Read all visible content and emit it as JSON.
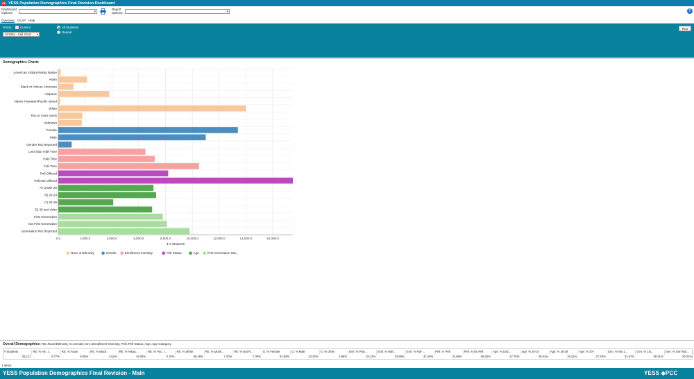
{
  "window": {
    "title": "YESS Population Demographics Final Revision.Dashboard"
  },
  "toolbar": {
    "dashboard_options_label": "Dashboard Options:",
    "report_options_label": "Report Options:",
    "dashboard_value": "",
    "report_value": ""
  },
  "menu": {
    "items": [
      "Overview",
      "OLAP",
      "Help"
    ]
  },
  "filters": {
    "terms_label": "Terms:",
    "current_label": "Current",
    "term_value": "201904 - Fall 2019",
    "radio_all": "All Students",
    "radio_repeat": "Repeat",
    "run_label": "Run"
  },
  "charts_title": "Demographics Charts",
  "chart_data": {
    "type": "bar",
    "orientation": "horizontal",
    "categories": [
      "American Indian/Alaska Native",
      "Asian",
      "Black or African American",
      "Hispanic",
      "Native Hawaiian/Pacific Island",
      "White",
      "Two or more races",
      "Unknown",
      "Female",
      "Male",
      "Gender Not Reported",
      "Less than Half-Time",
      "Half-Time",
      "Full-Time",
      "Pell Offered",
      "Pell Not Offered",
      "A) Under 20",
      "B) 20-24",
      "C) 25-29",
      "D) 30 and older",
      "First Generation",
      "Not First Generation",
      "Generation Not Reported"
    ],
    "values": [
      180,
      2150,
      1150,
      3800,
      150,
      14000,
      1800,
      1750,
      13400,
      11000,
      1000,
      6500,
      7200,
      10500,
      8200,
      17500,
      7100,
      7300,
      4100,
      7000,
      7800,
      8100,
      9800
    ],
    "groups": [
      "Race & Ethnicity",
      "Race & Ethnicity",
      "Race & Ethnicity",
      "Race & Ethnicity",
      "Race & Ethnicity",
      "Race & Ethnicity",
      "Race & Ethnicity",
      "Race & Ethnicity",
      "Gender",
      "Gender",
      "Gender",
      "Enrollment Intensity",
      "Enrollment Intensity",
      "Enrollment Intensity",
      "Pell Status",
      "Pell Status",
      "Age",
      "Age",
      "Age",
      "Age",
      "First Generation Sta...",
      "First Generation Sta...",
      "First Generation Sta..."
    ],
    "xlim": [
      0,
      17500
    ],
    "xticks": [
      0,
      2000,
      4000,
      6000,
      8000,
      10000,
      12000,
      14000,
      16000
    ],
    "xtick_labels": [
      "0.0",
      "2,000.0",
      "4,000.0",
      "6,000.0",
      "8,000.0",
      "10,000.0",
      "12,000.0",
      "14,000.0",
      "16,000.0"
    ],
    "xlabel": "# Students",
    "legend_position": "bottom",
    "legend": [
      {
        "name": "Race & Ethnicity",
        "color": "#f9c89a"
      },
      {
        "name": "Gender",
        "color": "#4c8dbf"
      },
      {
        "name": "Enrollment Intensity",
        "color": "#f7a1a1"
      },
      {
        "name": "Pell Status",
        "color": "#b94bbd"
      },
      {
        "name": "Age",
        "color": "#55a84f"
      },
      {
        "name": "First Generation Sta...",
        "color": "#a9dc9f"
      }
    ],
    "grid": true
  },
  "overall": {
    "title": "Overall Demographics:",
    "note": "RE=Race/Ethnicity, G=Gender, Enr=Enrollment Intensity, Pell=Pell Status, Age=Age Category",
    "headers": [
      "# Students",
      "RE: % Am. I...",
      "RE: % Asian",
      "RE: % Black",
      "RE: % Hispa...",
      "RE: % Pac. I...",
      "RE: % White",
      "RE: % Multir...",
      "RE: % Not R...",
      "G: % Female",
      "G: % Male",
      "G: % Other",
      "Enrl: % Part...",
      "Enrl: % Half...",
      "Enrl: % Full-...",
      "Pell: % Pell",
      "Pell: % No Pell",
      "Age: % Und...",
      "Age: % 20-24",
      "Age: % 25-29",
      "Age: % 30+",
      "Gen: % Not 1...",
      "Gen: % 1st...",
      "Gen: % Gen Not..."
    ],
    "values": [
      "25,121",
      "0.77%",
      "9.05%",
      "4.62%",
      "15.06%",
      "0.70%",
      "56.26%",
      "7.20%",
      "7.09%",
      "52.80%",
      "43.20%",
      "3.96%",
      "25.22%",
      "33.58%",
      "41.20%",
      "31.88%",
      "68.02%",
      "27.75%",
      "28.61%",
      "16.21%",
      "27.43%",
      "31.67%",
      "38.31%",
      "30.01%"
    ]
  },
  "items_count": "1 items",
  "status": {
    "title": "YESS Population Demographics Final Revision - Main",
    "brand": "YESS ◈PCC"
  }
}
